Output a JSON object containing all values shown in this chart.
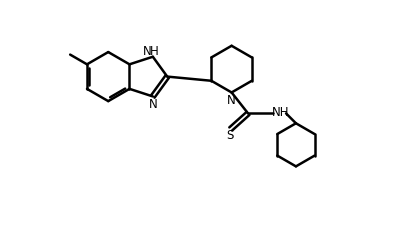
{
  "background_color": "#ffffff",
  "line_color": "#000000",
  "line_width": 1.8,
  "font_size": 8.5,
  "figsize": [
    4.14,
    2.3
  ],
  "dpi": 100,
  "xlim": [
    0,
    10
  ],
  "ylim": [
    -3.5,
    4.0
  ]
}
